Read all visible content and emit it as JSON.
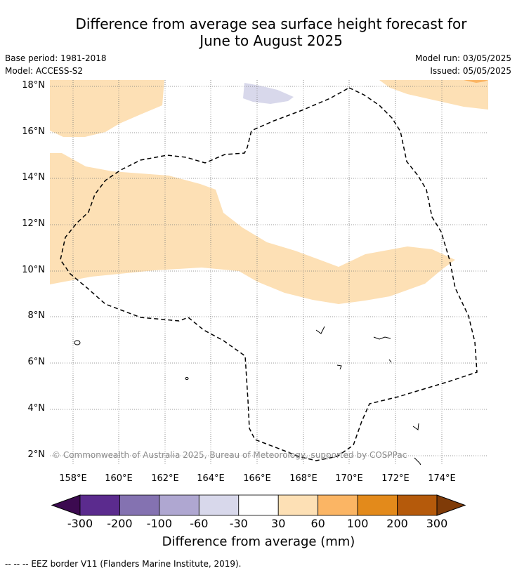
{
  "title_line1": "Difference from average sea surface height forecast for",
  "title_line2": "June to August 2025",
  "base_period": "Base period: 1981-2018",
  "model": "Model: ACCESS-S2",
  "model_run": "Model run: 03/05/2025",
  "issued": "Issued: 05/05/2025",
  "copyright": "© Commonwealth of Australia 2025, Bureau of Meteorology, supported by COSPPac",
  "lat_labels": [
    "18°N",
    "16°N",
    "14°N",
    "12°N",
    "10°N",
    "8°N",
    "6°N",
    "4°N",
    "2°N"
  ],
  "lon_labels": [
    "158°E",
    "160°E",
    "162°E",
    "164°E",
    "166°E",
    "168°E",
    "170°E",
    "172°E",
    "174°E"
  ],
  "colorbar": {
    "title": "Difference from average (mm)",
    "tick_labels": [
      "-300",
      "-200",
      "-100",
      "-60",
      "-30",
      "30",
      "60",
      "100",
      "200",
      "300"
    ],
    "colors": [
      "#3c0a50",
      "#5b2b8e",
      "#8472b1",
      "#afa7d1",
      "#d8d8eb",
      "#ffffff",
      "#fde0b5",
      "#fbb564",
      "#e38a1b",
      "#b55a0b",
      "#7f3b08"
    ]
  },
  "legend_note": "--  --  -- EEZ border V11 (Flanders Marine Institute, 2019)."
}
